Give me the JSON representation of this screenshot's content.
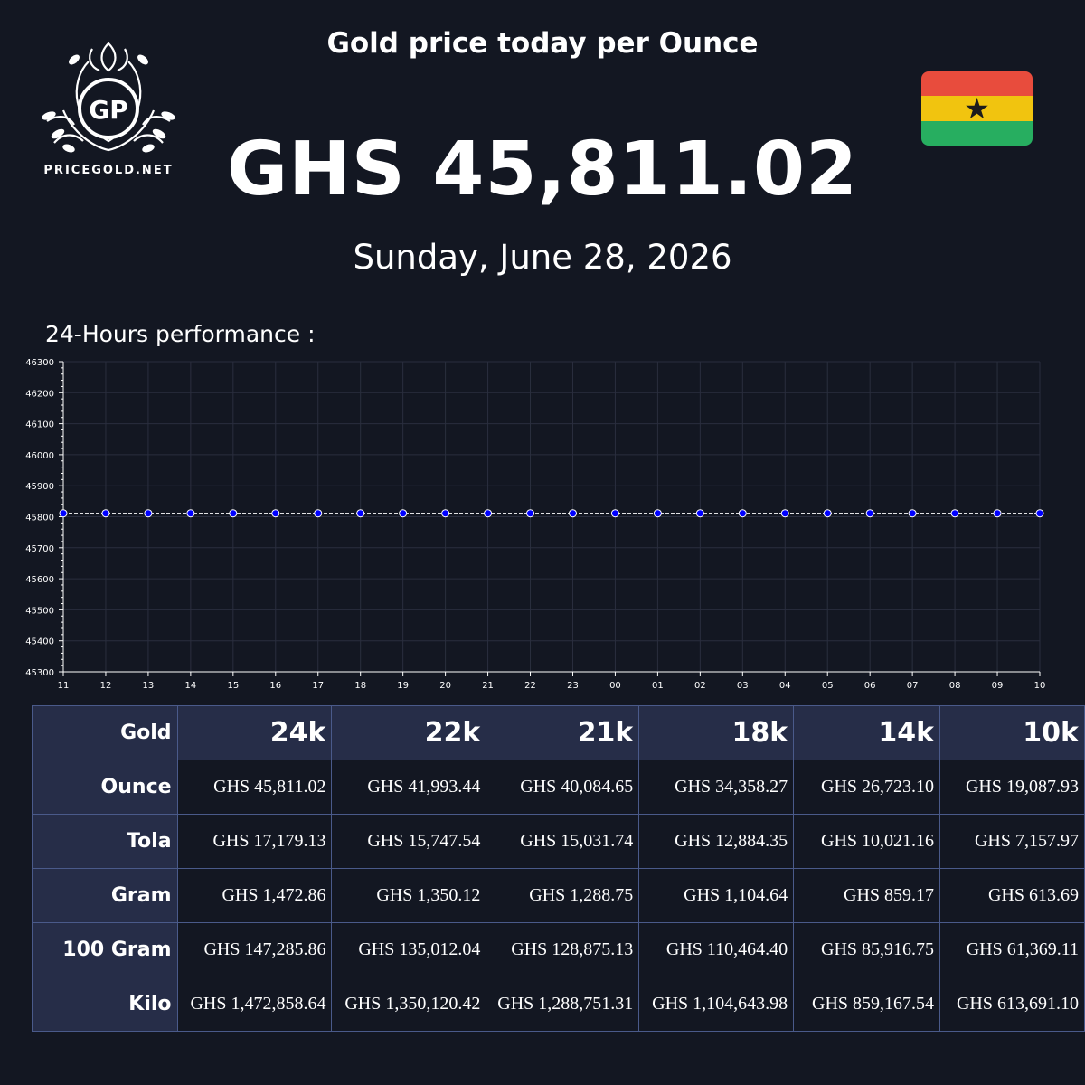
{
  "brand": {
    "initials": "GP",
    "name": "PRICEGOLD.NET"
  },
  "headline": "Gold price today per Ounce",
  "price": "GHS 45,811.02",
  "date": "Sunday, June 28, 2026",
  "flag": {
    "name": "Ghana",
    "colors": [
      "#e84c3d",
      "#f1c40f",
      "#27ae60"
    ],
    "star": "★"
  },
  "performance_label": "24-Hours performance :",
  "chart_data": {
    "type": "line",
    "x": [
      "11",
      "12",
      "13",
      "14",
      "15",
      "16",
      "17",
      "18",
      "19",
      "20",
      "21",
      "22",
      "23",
      "00",
      "01",
      "02",
      "03",
      "04",
      "05",
      "06",
      "07",
      "08",
      "09",
      "10"
    ],
    "series": [
      {
        "values": [
          45811.02,
          45811.02,
          45811.02,
          45811.02,
          45811.02,
          45811.02,
          45811.02,
          45811.02,
          45811.02,
          45811.02,
          45811.02,
          45811.02,
          45811.02,
          45811.02,
          45811.02,
          45811.02,
          45811.02,
          45811.02,
          45811.02,
          45811.02,
          45811.02,
          45811.02,
          45811.02,
          45811.02
        ],
        "color": "#0000ff",
        "line_color": "#ffffff",
        "line_style": "dashed"
      }
    ],
    "yticks": [
      45300,
      45400,
      45500,
      45600,
      45700,
      45800,
      45900,
      46000,
      46100,
      46200,
      46300
    ],
    "ylim": [
      45300,
      46300
    ],
    "grid": true
  },
  "table": {
    "corner": "Gold",
    "columns": [
      "24k",
      "22k",
      "21k",
      "18k",
      "14k",
      "10k"
    ],
    "rows": [
      {
        "label": "Ounce",
        "values": [
          "GHS 45,811.02",
          "GHS 41,993.44",
          "GHS 40,084.65",
          "GHS 34,358.27",
          "GHS 26,723.10",
          "GHS 19,087.93"
        ]
      },
      {
        "label": "Tola",
        "values": [
          "GHS 17,179.13",
          "GHS 15,747.54",
          "GHS 15,031.74",
          "GHS 12,884.35",
          "GHS 10,021.16",
          "GHS 7,157.97"
        ]
      },
      {
        "label": "Gram",
        "values": [
          "GHS 1,472.86",
          "GHS 1,350.12",
          "GHS 1,288.75",
          "GHS 1,104.64",
          "GHS 859.17",
          "GHS 613.69"
        ]
      },
      {
        "label": "100 Gram",
        "values": [
          "GHS 147,285.86",
          "GHS 135,012.04",
          "GHS 128,875.13",
          "GHS 110,464.40",
          "GHS 85,916.75",
          "GHS 61,369.11"
        ]
      },
      {
        "label": "Kilo",
        "values": [
          "GHS 1,472,858.64",
          "GHS 1,350,120.42",
          "GHS 1,288,751.31",
          "GHS 1,104,643.98",
          "GHS 859,167.54",
          "GHS 613,691.10"
        ]
      }
    ]
  }
}
